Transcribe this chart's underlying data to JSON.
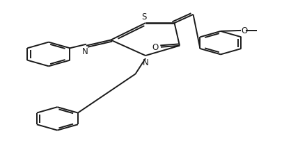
{
  "background_color": "#ffffff",
  "line_color": "#1a1a1a",
  "line_width": 1.4,
  "dbo": 0.013,
  "figsize": [
    4.18,
    2.07
  ],
  "dpi": 100,
  "xlim": [
    0,
    1
  ],
  "ylim": [
    0,
    1
  ]
}
